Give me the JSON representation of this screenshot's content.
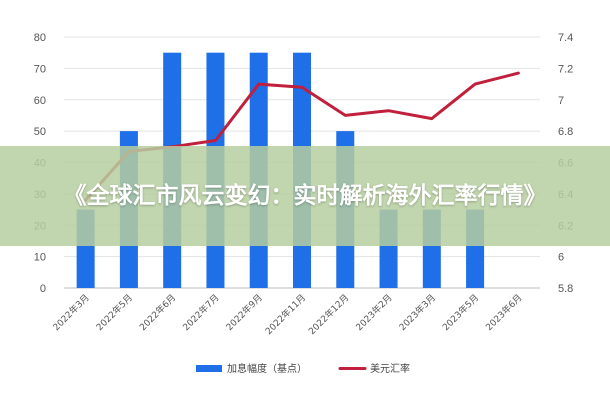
{
  "banner": {
    "title": "《全球汇市风云变幻：实时解析海外汇率行情》"
  },
  "colors": {
    "bar": "#1E6FE8",
    "line": "#C0203B",
    "grid": "#e3e3e3"
  },
  "chart_data": {
    "type": "bar",
    "categories": [
      "2022年3月",
      "2022年5月",
      "2022年6月",
      "2022年7月",
      "2022年9月",
      "2022年11月",
      "2022年12月",
      "2023年2月",
      "2023年3月",
      "2023年5月",
      "2023年6月"
    ],
    "series": [
      {
        "name": "加息幅度（基点）",
        "type": "bar",
        "axis": "left",
        "values": [
          25,
          50,
          75,
          75,
          75,
          75,
          50,
          25,
          25,
          25,
          null
        ]
      },
      {
        "name": "美元汇率",
        "type": "line",
        "axis": "right",
        "values": [
          6.36,
          6.67,
          6.7,
          6.74,
          7.1,
          7.08,
          6.9,
          6.93,
          6.88,
          7.1,
          7.17
        ]
      }
    ],
    "left_axis": {
      "ylim": [
        0,
        80
      ],
      "ticks": [
        0,
        10,
        20,
        30,
        40,
        50,
        60,
        70,
        80
      ]
    },
    "right_axis": {
      "ylim": [
        5.8,
        7.4
      ],
      "ticks": [
        "5.8",
        "6",
        "6.2",
        "6.4",
        "6.6",
        "6.8",
        "7",
        "7.2",
        "7.4"
      ]
    },
    "grid": true,
    "legend_position": "bottom"
  }
}
